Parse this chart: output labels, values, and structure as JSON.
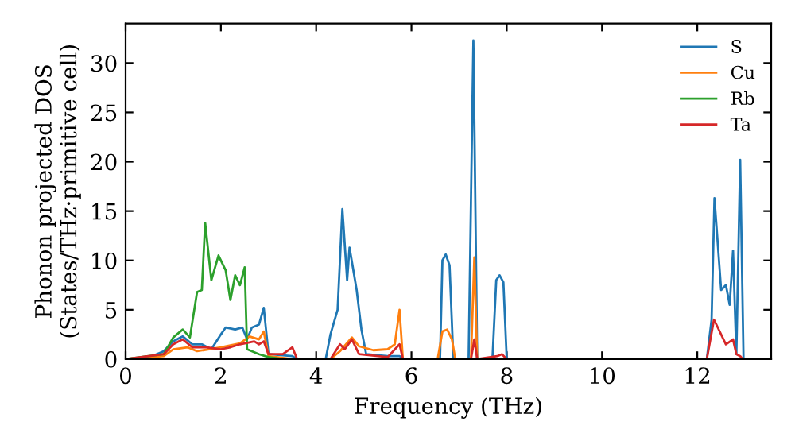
{
  "chart_data": {
    "type": "line",
    "xlabel": "Frequency (THz)",
    "ylabel": "Phonon projected DOS\n(States/THz·primitive cell)",
    "xlim": [
      0,
      13.55
    ],
    "ylim": [
      0,
      34
    ],
    "xticks": [
      0,
      2,
      4,
      6,
      8,
      10,
      12
    ],
    "yticks": [
      0,
      5,
      10,
      15,
      20,
      25,
      30
    ],
    "grid": false,
    "legend": "top right",
    "marker": "none",
    "line_style": "solid",
    "series": [
      {
        "name": "S",
        "color": "#1f77b4",
        "x": [
          0,
          0.5,
          0.8,
          1.0,
          1.2,
          1.4,
          1.6,
          1.8,
          2.0,
          2.1,
          2.3,
          2.45,
          2.55,
          2.65,
          2.8,
          2.9,
          3.0,
          3.5,
          3.6,
          4.2,
          4.3,
          4.45,
          4.55,
          4.65,
          4.7,
          4.85,
          4.95,
          5.05,
          5.5,
          5.75,
          5.85,
          6.6,
          6.65,
          6.72,
          6.8,
          6.88,
          7.2,
          7.3,
          7.38,
          7.7,
          7.78,
          7.85,
          7.93,
          8.0,
          12.2,
          12.3,
          12.36,
          12.5,
          12.6,
          12.68,
          12.75,
          12.82,
          12.9,
          12.97,
          13.5
        ],
        "values": [
          0,
          0.2,
          0.8,
          1.8,
          2.3,
          1.5,
          1.5,
          1.0,
          2.5,
          3.2,
          3.0,
          3.2,
          2.0,
          3.2,
          3.5,
          5.2,
          0.5,
          0.3,
          0,
          0,
          2.5,
          5.0,
          15.2,
          8.0,
          11.3,
          7.0,
          3.0,
          0.5,
          0.3,
          0.3,
          0,
          0,
          10.0,
          10.6,
          9.5,
          0,
          0,
          32.3,
          0,
          0,
          8.0,
          8.5,
          7.8,
          0,
          0,
          4.0,
          16.3,
          7.0,
          7.5,
          5.5,
          11.0,
          0.5,
          20.2,
          0,
          0
        ]
      },
      {
        "name": "Cu",
        "color": "#ff7f0e",
        "x": [
          0,
          0.8,
          1.0,
          1.3,
          1.5,
          2.0,
          2.4,
          2.6,
          2.8,
          2.9,
          3.0,
          3.5,
          4.3,
          4.5,
          4.75,
          4.9,
          5.2,
          5.5,
          5.65,
          5.75,
          5.82,
          6.55,
          6.65,
          6.75,
          6.85,
          6.92,
          7.25,
          7.32,
          7.38,
          13.5
        ],
        "values": [
          0,
          0.3,
          1.0,
          1.2,
          0.8,
          1.2,
          1.6,
          2.3,
          2.0,
          2.8,
          0.3,
          0,
          0,
          0.8,
          2.2,
          1.3,
          0.9,
          1.0,
          1.5,
          5.0,
          0,
          0,
          2.8,
          3.0,
          2.0,
          0,
          0,
          10.3,
          0,
          0
        ]
      },
      {
        "name": "Rb",
        "color": "#2ca02c",
        "x": [
          0,
          0.8,
          1.0,
          1.2,
          1.35,
          1.5,
          1.6,
          1.67,
          1.8,
          1.95,
          2.1,
          2.2,
          2.3,
          2.4,
          2.5,
          2.55,
          2.8,
          3.0,
          3.3
        ],
        "values": [
          0,
          0.5,
          2.2,
          3.0,
          2.2,
          6.8,
          7.0,
          13.8,
          8.0,
          10.5,
          9.0,
          6.0,
          8.5,
          7.5,
          9.3,
          1.0,
          0.5,
          0.2,
          0
        ]
      },
      {
        "name": "Ta",
        "color": "#d62728",
        "x": [
          0,
          0.8,
          1.0,
          1.2,
          1.4,
          1.7,
          2.0,
          2.2,
          2.4,
          2.7,
          2.8,
          2.9,
          3.0,
          3.3,
          3.5,
          3.6,
          4.3,
          4.5,
          4.6,
          4.75,
          4.9,
          5.5,
          5.75,
          5.82,
          7.25,
          7.32,
          7.38,
          7.8,
          7.9,
          8.0,
          12.2,
          12.35,
          12.6,
          12.75,
          12.82,
          12.9,
          12.95,
          13.5
        ],
        "values": [
          0,
          0.5,
          1.5,
          2.0,
          1.2,
          1.2,
          1.0,
          1.2,
          1.5,
          1.8,
          1.5,
          1.8,
          0.5,
          0.5,
          1.2,
          0,
          0,
          1.5,
          1.0,
          2.0,
          0.5,
          0.2,
          1.5,
          0,
          0,
          2.0,
          0,
          0.3,
          0.5,
          0,
          0,
          4.0,
          1.5,
          2.0,
          0.5,
          0.3,
          0,
          0
        ]
      }
    ]
  }
}
